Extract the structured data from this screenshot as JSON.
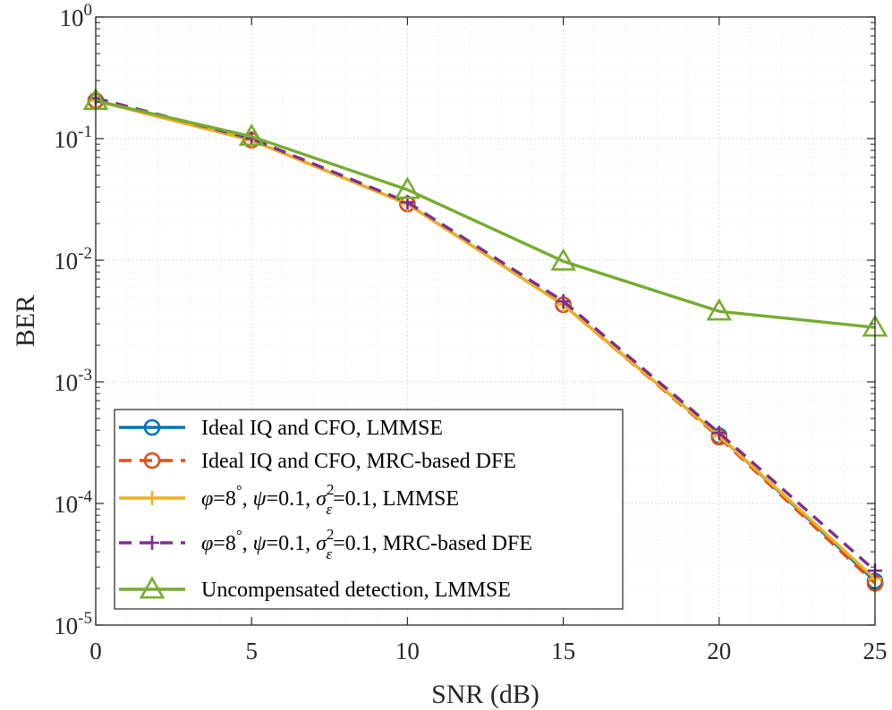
{
  "chart_data": {
    "type": "line",
    "x": [
      0,
      5,
      10,
      15,
      20,
      25
    ],
    "xlabel": "SNR (dB)",
    "ylabel": "BER",
    "yscale": "log",
    "xlim": [
      0,
      25
    ],
    "ylim": [
      1e-05,
      1
    ],
    "grid": true,
    "legend_position": "bottom-left",
    "xticks": [
      "0",
      "5",
      "10",
      "15",
      "20",
      "25"
    ],
    "yticks": [
      {
        "base": "10",
        "exp": "0"
      },
      {
        "base": "10",
        "exp": "-1"
      },
      {
        "base": "10",
        "exp": "-2"
      },
      {
        "base": "10",
        "exp": "-3"
      },
      {
        "base": "10",
        "exp": "-4"
      },
      {
        "base": "10",
        "exp": "-5"
      }
    ],
    "series": [
      {
        "name": "Ideal IQ and CFO, LMMSE",
        "legend_parts": [
          "Ideal IQ and CFO, LMMSE"
        ],
        "values": [
          0.205,
          0.097,
          0.029,
          0.0043,
          0.00036,
          2.3e-05
        ],
        "color": "#0072BD",
        "dash": "solid",
        "marker": "circle"
      },
      {
        "name": "Ideal IQ and CFO, MRC-based DFE",
        "legend_parts": [
          "Ideal IQ and CFO, MRC-based DFE"
        ],
        "values": [
          0.205,
          0.097,
          0.029,
          0.0043,
          0.00035,
          2.2e-05
        ],
        "color": "#D95319",
        "dash": "dashed",
        "marker": "circle"
      },
      {
        "name": "φ=8°, ψ=0.1, σε2=0.1, LMMSE",
        "legend_parts": [
          "φ",
          "=8",
          "°",
          ", ",
          "ψ",
          "=0.1, ",
          "σ",
          "2",
          "ε",
          "=0.1, LMMSE"
        ],
        "values": [
          0.205,
          0.097,
          0.029,
          0.0043,
          0.00036,
          2.4e-05
        ],
        "color": "#EDB120",
        "dash": "solid",
        "marker": "plus"
      },
      {
        "name": "φ=8°, ψ=0.1, σε2=0.1, MRC-based DFE",
        "legend_parts": [
          "φ",
          "=8",
          "°",
          ", ",
          "ψ",
          "=0.1, ",
          "σ",
          "2",
          "ε",
          "=0.1, MRC-based DFE"
        ],
        "values": [
          0.215,
          0.1,
          0.03,
          0.0046,
          0.00038,
          2.8e-05
        ],
        "color": "#7E2F8E",
        "dash": "dashed",
        "marker": "plus"
      },
      {
        "name": "Uncompensated detection, LMMSE",
        "legend_parts": [
          "Uncompensated detection, LMMSE"
        ],
        "values": [
          0.205,
          0.104,
          0.038,
          0.0098,
          0.0038,
          0.0028
        ],
        "color": "#77AC30",
        "dash": "solid",
        "marker": "triangle"
      }
    ]
  }
}
